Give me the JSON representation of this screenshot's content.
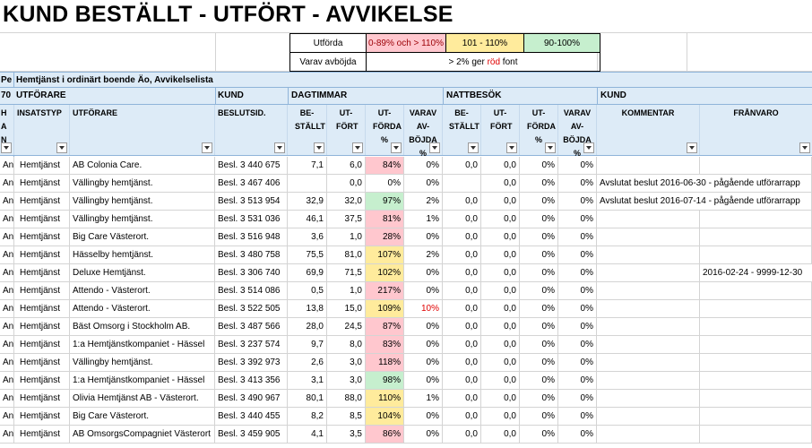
{
  "title": "KUND  BESTÄLLT - UTFÖRT - AVVIKELSE",
  "legend": {
    "utforda_label": "Utförda",
    "ranges": [
      {
        "label": "0-89% och > 110%",
        "color": "#ffc7ce",
        "text_color": "#9c0006"
      },
      {
        "label": "101 - 110%",
        "color": "#ffeb9c",
        "text_color": "#000000"
      },
      {
        "label": "90-100%",
        "color": "#c6efce",
        "text_color": "#000000"
      }
    ],
    "avbojda_label": "Varav avböjda",
    "avbojda_note_pre": "> 2% ger ",
    "avbojda_note_red": "röd",
    "avbojda_note_post": " font"
  },
  "header": {
    "clip_a": "Pe",
    "section_title": "Hemtjänst i ordinärt boende Äo, Avvikelselista",
    "clip_b": "70",
    "group_utforare": "UTFÖRARE",
    "group_kund": "KUND",
    "group_dagtimmar": "DAGTIMMAR",
    "group_nattbesok": "NATTBESÖK",
    "group_kund2": "KUND"
  },
  "columns": {
    "a": "H A N",
    "insatstyp": "INSATSTYP",
    "utforare": "UTFÖRARE",
    "beslutsid": "BESLUTSID.",
    "dag_bestallt": "BE- STÄLLT",
    "dag_utfort": "UT- FÖRT",
    "dag_utforda": "UT- FÖRDA %",
    "dag_avbojda": "VARAV AV- BÖJDA %",
    "natt_bestallt": "BE- STÄLLT",
    "natt_utfort": "UT- FÖRT",
    "natt_utforda": "UT- FÖRDA %",
    "natt_avbojda": "VARAV AV- BÖJDA %",
    "kommentar": "KOMMENTAR",
    "franvaro": "FRÅNVARO"
  },
  "rows": [
    {
      "a": "Ant",
      "typ": "Hemtjänst",
      "utf": "AB Colonia Care.",
      "id": "Besl. 3 440 675",
      "db": "7,1",
      "du": "6,0",
      "dp": "84%",
      "dc": "pink",
      "dv": "0%",
      "dvr": false,
      "nb": "0,0",
      "nu": "0,0",
      "np": "0%",
      "nv": "0%",
      "kom": "",
      "fr": ""
    },
    {
      "a": "Ant",
      "typ": "Hemtjänst",
      "utf": "Vällingby hemtjänst.",
      "id": "Besl. 3 467 406",
      "db": "",
      "du": "0,0",
      "dp": "0%",
      "dc": "",
      "dv": "0%",
      "dvr": false,
      "nb": "",
      "nu": "0,0",
      "np": "0%",
      "nv": "0%",
      "kom": "Avslutat beslut 2016-06-30 - pågående utförarrapp",
      "fr": ""
    },
    {
      "a": "Ant",
      "typ": "Hemtjänst",
      "utf": "Vällingby hemtjänst.",
      "id": "Besl. 3 513 954",
      "db": "32,9",
      "du": "32,0",
      "dp": "97%",
      "dc": "green",
      "dv": "2%",
      "dvr": false,
      "nb": "0,0",
      "nu": "0,0",
      "np": "0%",
      "nv": "0%",
      "kom": "Avslutat beslut 2016-07-14 - pågående utförarrapp",
      "fr": ""
    },
    {
      "a": "Ant",
      "typ": "Hemtjänst",
      "utf": "Vällingby hemtjänst.",
      "id": "Besl. 3 531 036",
      "db": "46,1",
      "du": "37,5",
      "dp": "81%",
      "dc": "pink",
      "dv": "1%",
      "dvr": false,
      "nb": "0,0",
      "nu": "0,0",
      "np": "0%",
      "nv": "0%",
      "kom": "",
      "fr": ""
    },
    {
      "a": "Ant",
      "typ": "Hemtjänst",
      "utf": "Big Care Västerort.",
      "id": "Besl. 3 516 948",
      "db": "3,6",
      "du": "1,0",
      "dp": "28%",
      "dc": "pink",
      "dv": "0%",
      "dvr": false,
      "nb": "0,0",
      "nu": "0,0",
      "np": "0%",
      "nv": "0%",
      "kom": "",
      "fr": ""
    },
    {
      "a": "Ant",
      "typ": "Hemtjänst",
      "utf": "Hässelby hemtjänst.",
      "id": "Besl. 3 480 758",
      "db": "75,5",
      "du": "81,0",
      "dp": "107%",
      "dc": "yellow",
      "dv": "2%",
      "dvr": false,
      "nb": "0,0",
      "nu": "0,0",
      "np": "0%",
      "nv": "0%",
      "kom": "",
      "fr": ""
    },
    {
      "a": "Ant",
      "typ": "Hemtjänst",
      "utf": "Deluxe Hemtjänst.",
      "id": "Besl. 3 306 740",
      "db": "69,9",
      "du": "71,5",
      "dp": "102%",
      "dc": "yellow",
      "dv": "0%",
      "dvr": false,
      "nb": "0,0",
      "nu": "0,0",
      "np": "0%",
      "nv": "0%",
      "kom": "",
      "fr": "2016-02-24 - 9999-12-30"
    },
    {
      "a": "Ant",
      "typ": "Hemtjänst",
      "utf": "Attendo - Västerort.",
      "id": "Besl. 3 514 086",
      "db": "0,5",
      "du": "1,0",
      "dp": "217%",
      "dc": "pink",
      "dv": "0%",
      "dvr": false,
      "nb": "0,0",
      "nu": "0,0",
      "np": "0%",
      "nv": "0%",
      "kom": "",
      "fr": ""
    },
    {
      "a": "Ant",
      "typ": "Hemtjänst",
      "utf": "Attendo - Västerort.",
      "id": "Besl. 3 522 505",
      "db": "13,8",
      "du": "15,0",
      "dp": "109%",
      "dc": "yellow",
      "dv": "10%",
      "dvr": true,
      "nb": "0,0",
      "nu": "0,0",
      "np": "0%",
      "nv": "0%",
      "kom": "",
      "fr": ""
    },
    {
      "a": "Ant",
      "typ": "Hemtjänst",
      "utf": "Bäst Omsorg i Stockholm AB.",
      "id": "Besl. 3 487 566",
      "db": "28,0",
      "du": "24,5",
      "dp": "87%",
      "dc": "pink",
      "dv": "0%",
      "dvr": false,
      "nb": "0,0",
      "nu": "0,0",
      "np": "0%",
      "nv": "0%",
      "kom": "",
      "fr": ""
    },
    {
      "a": "Ant",
      "typ": "Hemtjänst",
      "utf": "1:a Hemtjänstkompaniet - Hässel",
      "id": "Besl. 3 237 574",
      "db": "9,7",
      "du": "8,0",
      "dp": "83%",
      "dc": "pink",
      "dv": "0%",
      "dvr": false,
      "nb": "0,0",
      "nu": "0,0",
      "np": "0%",
      "nv": "0%",
      "kom": "",
      "fr": ""
    },
    {
      "a": "Ant",
      "typ": "Hemtjänst",
      "utf": "Vällingby hemtjänst.",
      "id": "Besl. 3 392 973",
      "db": "2,6",
      "du": "3,0",
      "dp": "118%",
      "dc": "pink",
      "dv": "0%",
      "dvr": false,
      "nb": "0,0",
      "nu": "0,0",
      "np": "0%",
      "nv": "0%",
      "kom": "",
      "fr": ""
    },
    {
      "a": "Ant",
      "typ": "Hemtjänst",
      "utf": "1:a Hemtjänstkompaniet - Hässel",
      "id": "Besl. 3 413 356",
      "db": "3,1",
      "du": "3,0",
      "dp": "98%",
      "dc": "green",
      "dv": "0%",
      "dvr": false,
      "nb": "0,0",
      "nu": "0,0",
      "np": "0%",
      "nv": "0%",
      "kom": "",
      "fr": ""
    },
    {
      "a": "Ant",
      "typ": "Hemtjänst",
      "utf": "Olivia Hemtjänst AB - Västerort.",
      "id": "Besl. 3 490 967",
      "db": "80,1",
      "du": "88,0",
      "dp": "110%",
      "dc": "yellow",
      "dv": "1%",
      "dvr": false,
      "nb": "0,0",
      "nu": "0,0",
      "np": "0%",
      "nv": "0%",
      "kom": "",
      "fr": ""
    },
    {
      "a": "Ant",
      "typ": "Hemtjänst",
      "utf": "Big Care Västerort.",
      "id": "Besl. 3 440 455",
      "db": "8,2",
      "du": "8,5",
      "dp": "104%",
      "dc": "yellow",
      "dv": "0%",
      "dvr": false,
      "nb": "0,0",
      "nu": "0,0",
      "np": "0%",
      "nv": "0%",
      "kom": "",
      "fr": ""
    },
    {
      "a": "Ant",
      "typ": "Hemtjänst",
      "utf": "AB OmsorgsCompagniet Västerort",
      "id": "Besl. 3 459 905",
      "db": "4,1",
      "du": "3,5",
      "dp": "86%",
      "dc": "pink",
      "dv": "0%",
      "dvr": false,
      "nb": "0,0",
      "nu": "0,0",
      "np": "0%",
      "nv": "0%",
      "kom": "",
      "fr": ""
    }
  ]
}
